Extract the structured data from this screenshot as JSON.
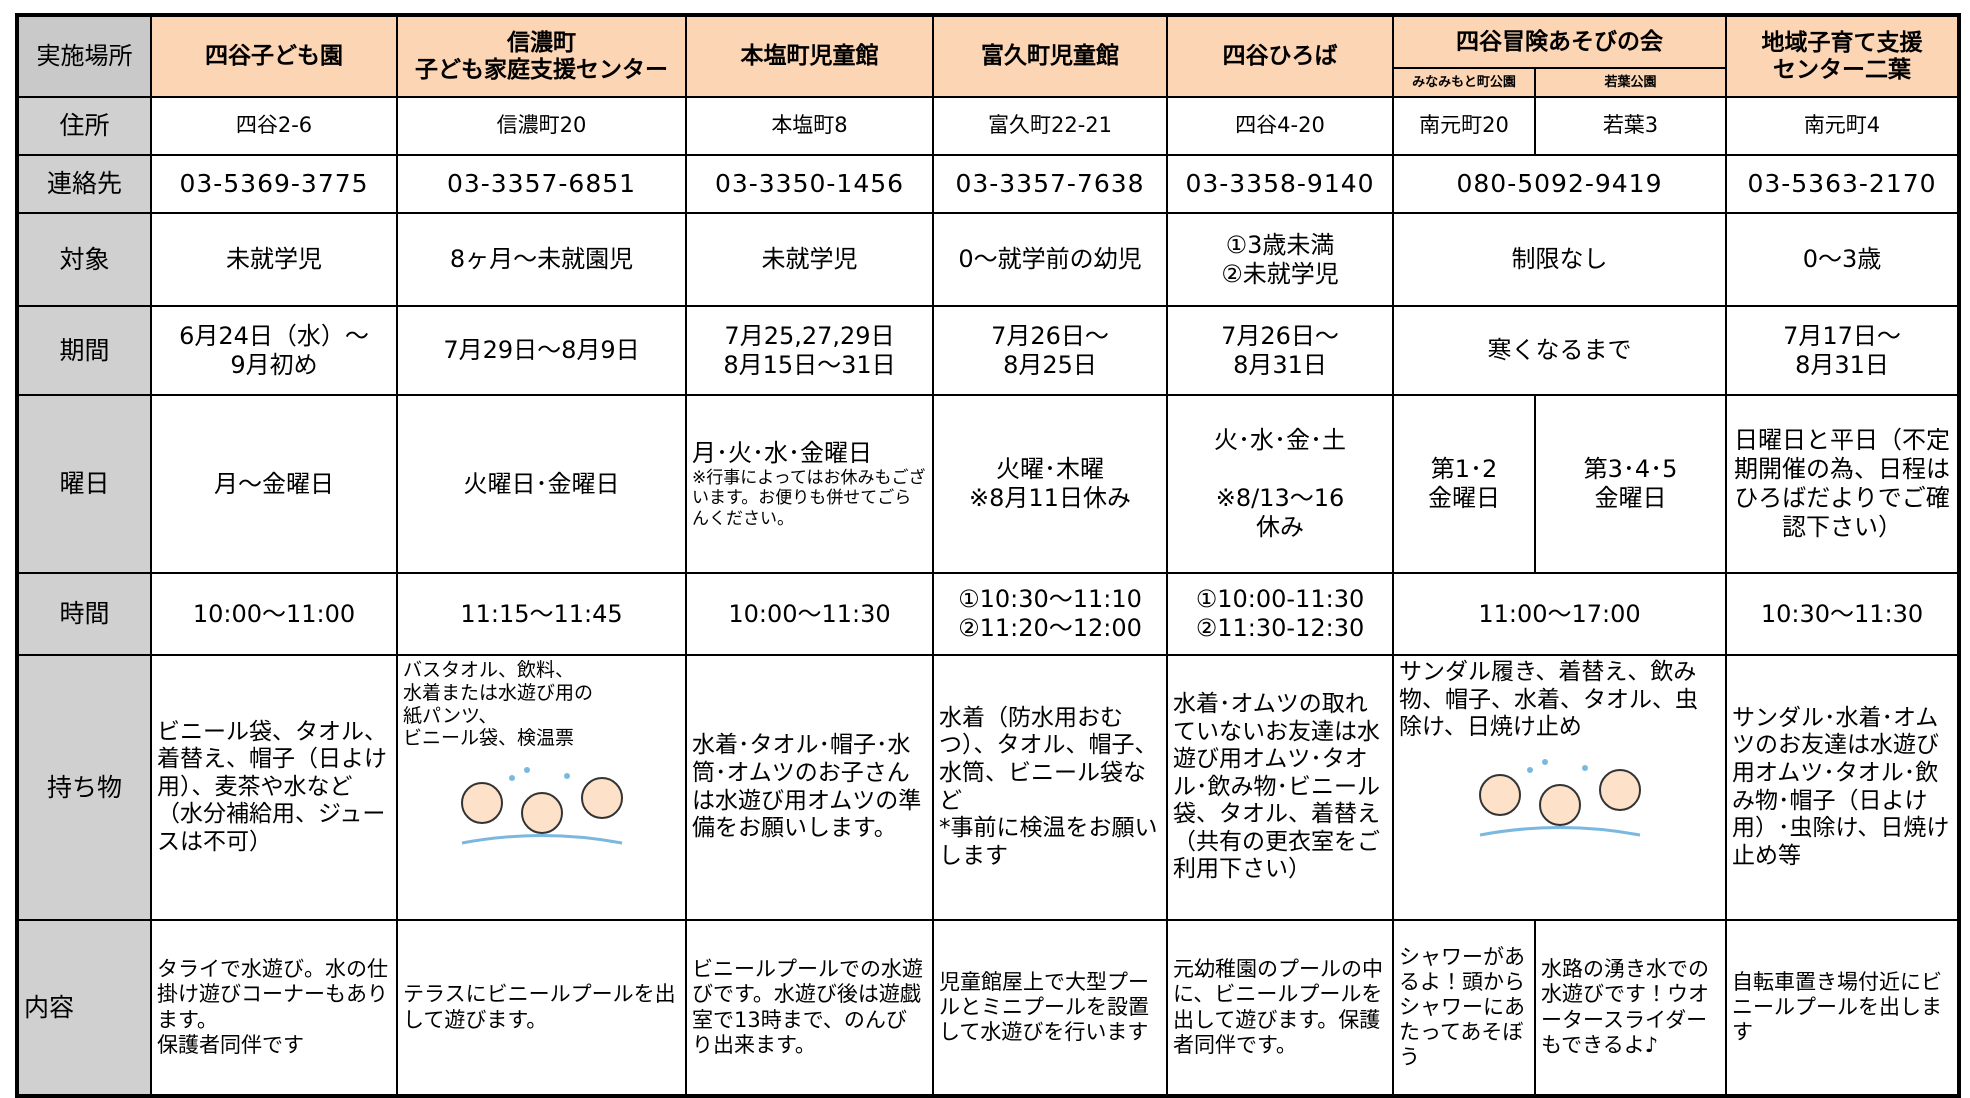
{
  "header": {
    "corner": "実施場所",
    "venues": [
      {
        "name": "四谷子ども園"
      },
      {
        "name": "信濃町\n子ども家庭支援センター"
      },
      {
        "name": "本塩町児童館"
      },
      {
        "name": "富久町児童館"
      },
      {
        "name": "四谷ひろば"
      },
      {
        "name": "四谷冒険あそびの会",
        "parks": [
          "みなみもと町公園",
          "若葉公園"
        ]
      },
      {
        "name": "地域子育て支援\nセンター二葉"
      }
    ]
  },
  "rows": [
    {
      "label": "住所",
      "cells": [
        "四谷2-6",
        "信濃町20",
        "本塩町8",
        "富久町22-21",
        "四谷4-20",
        [
          "南元町20",
          "若葉3"
        ],
        "南元町4"
      ]
    },
    {
      "label": "連絡先",
      "cells": [
        "03-5369-3775",
        "03-3357-6851",
        "03-3350-1456",
        "03-3357-7638",
        "03-3358-9140",
        "080-5092-9419",
        "03-5363-2170"
      ]
    },
    {
      "label": "対象",
      "cells": [
        "未就学児",
        "8ヶ月～未就園児",
        "未就学児",
        "0～就学前の幼児",
        "①3歳未満\n②未就学児",
        "制限なし",
        "0～3歳"
      ]
    },
    {
      "label": "期間",
      "cells": [
        "6月24日（水）～\n9月初め",
        "7月29日～8月9日",
        "7月25,27,29日\n8月15日～31日",
        "7月26日～\n8月25日",
        "7月26日～\n8月31日",
        "寒くなるまで",
        "7月17日～\n8月31日"
      ]
    },
    {
      "label": "曜日",
      "cells": [
        "月～金曜日",
        "火曜日･金曜日",
        {
          "main": "月･火･水･金曜日",
          "note": "※行事によってはお休みもございます。お便りも併せてごらんください。"
        },
        "火曜･木曜\n※8月11日休み",
        "火･水･金･土\n\n※8/13～16\n休み",
        [
          "第1･2\n金曜日",
          "第3･4･5\n金曜日"
        ],
        "日曜日と平日（不定期開催の為、日程はひろばだよりでご確認下さい）"
      ]
    },
    {
      "label": "時間",
      "cells": [
        "10:00～11:00",
        "11:15～11:45",
        "10:00～11:30",
        "①10:30～11:10\n②11:20～12:00",
        "①10:00-11:30\n②11:30-12:30",
        "11:00～17:00",
        "10:30～11:30"
      ]
    },
    {
      "label": "持ち物",
      "cells": [
        "ビニール袋、タオル、着替え、帽子（日よけ用）、麦茶や水など（水分補給用、ジュースは不可）",
        "バスタオル、飲料、\n水着または水遊び用の\n紙パンツ、\nビニール袋、検温票",
        "水着･タオル･帽子･水筒･オムツのお子さんは水遊び用オムツの準備をお願いします。",
        "水着（防水用おむつ）、タオル、帽子、水筒、ビニール袋など\n*事前に検温をお願いします",
        "水着･オムツの取れていないお友達は水遊び用オムツ･タオル･飲み物･ビニール袋、タオル、着替え（共有の更衣室をご利用下さい）",
        "サンダル履き、着替え、飲み物、帽子、水着、タオル、虫除け、日焼け止め",
        "サンダル･水着･オムツのお友達は水遊び用オムツ･タオル･飲み物･帽子（日よけ用）･虫除け、日焼け止め等"
      ]
    },
    {
      "label": "内容",
      "cells": [
        "タライで水遊び。水の仕掛け遊びコーナーもあります。\n保護者同伴です",
        "テラスにビニールプールを出して遊びます。",
        "ビニールプールでの水遊びです。水遊び後は遊戯室で13時まで、のんびり出来ます。",
        "児童館屋上で大型プールとミニプールを設置して水遊びを行います",
        "元幼稚園のプールの中に、ビニールプールを出して遊びます。保護者同伴です。",
        [
          "シャワーがあるよ！頭からシャワーにあたってあそぼう",
          "水路の湧き水での水遊びです！ウオータースライダーもできるよ♪"
        ],
        "自転車置き場付近にビニールプールを出します"
      ]
    }
  ]
}
